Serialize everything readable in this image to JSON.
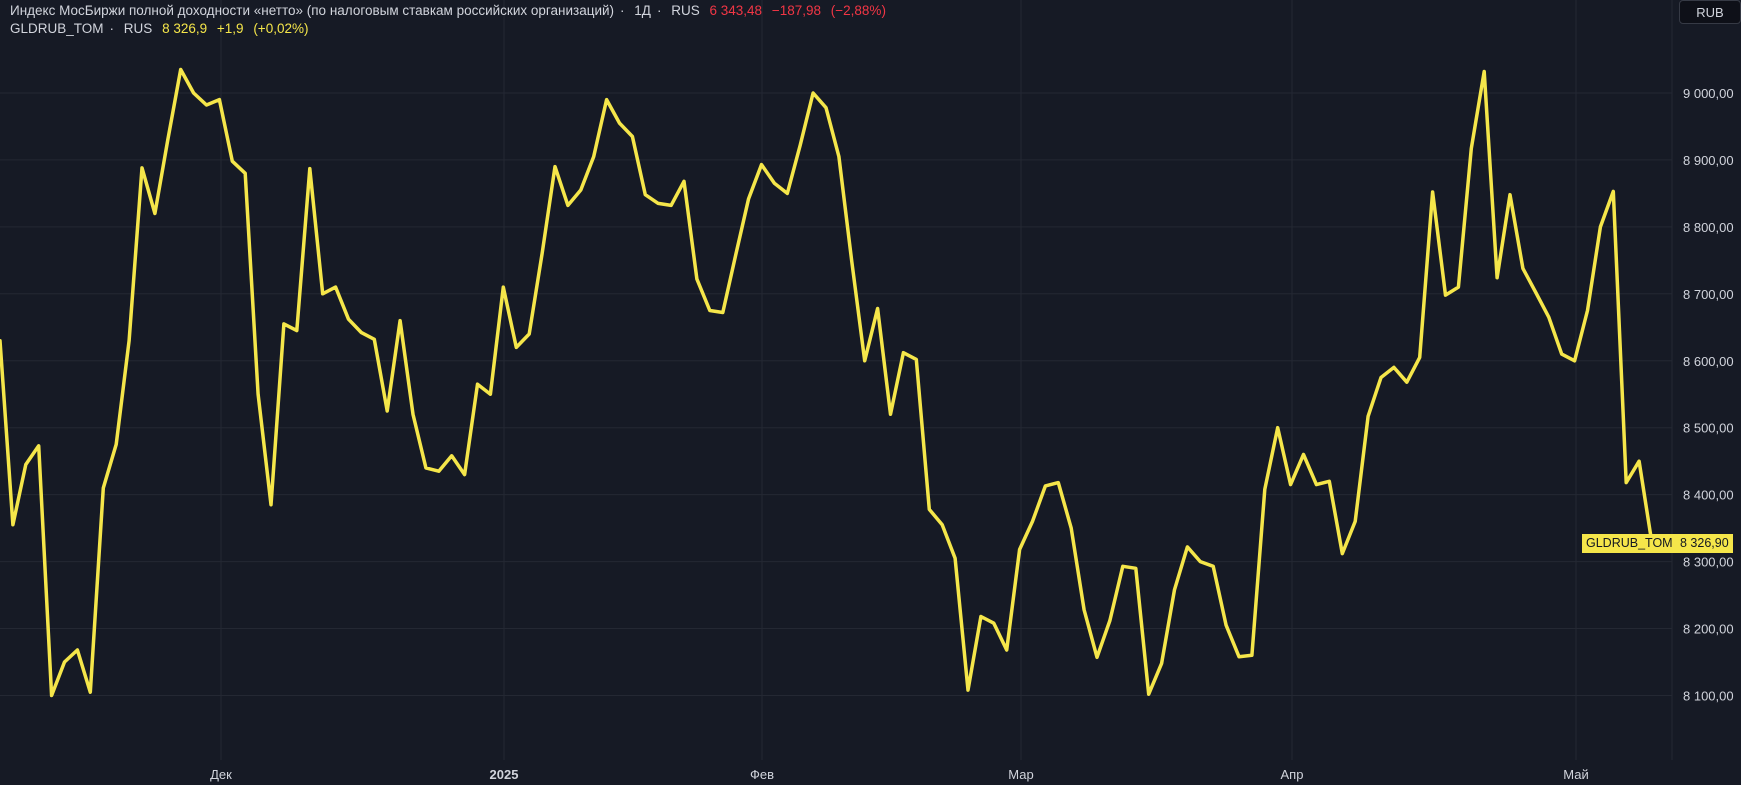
{
  "legend": {
    "row1": {
      "name": "Индекс МосБиржи полной доходности «нетто» (по налоговым ставкам российских организаций)",
      "interval": "1Д",
      "exchange": "RUS",
      "last": "6 343,48",
      "change": "−187,98",
      "change_pct": "(−2,88%)"
    },
    "row2": {
      "name": "GLDRUB_TOM",
      "exchange": "RUS",
      "last": "8 326,9",
      "change": "+1,9",
      "change_pct": "(+0,02%)"
    },
    "separator": "·"
  },
  "currency_button": "RUB",
  "price_label": {
    "name": "GLDRUB_TOM",
    "value": "8 326,90"
  },
  "colors": {
    "background": "#161a25",
    "grid": "#242833",
    "line": "#f5e64a",
    "axis_text": "#d1d4dc",
    "negative": "#f23645"
  },
  "chart_data": {
    "type": "line",
    "series": [
      {
        "name": "GLDRUB_TOM",
        "values": [
          8630,
          8355,
          8445,
          8473,
          8100,
          8150,
          8168,
          8105,
          8410,
          8475,
          8630,
          8888,
          8820,
          8930,
          9035,
          9000,
          8982,
          8990,
          8898,
          8880,
          8550,
          8385,
          8655,
          8645,
          8887,
          8700,
          8710,
          8662,
          8642,
          8632,
          8525,
          8660,
          8520,
          8440,
          8435,
          8458,
          8430,
          8565,
          8550,
          8710,
          8620,
          8640,
          8760,
          8890,
          8832,
          8855,
          8905,
          8990,
          8955,
          8935,
          8848,
          8835,
          8832,
          8868,
          8722,
          8675,
          8672,
          8758,
          8842,
          8893,
          8865,
          8850,
          8922,
          9000,
          8978,
          8905,
          8748,
          8600,
          8678,
          8520,
          8612,
          8602,
          8378,
          8355,
          8305,
          8108,
          8218,
          8208,
          8168,
          8318,
          8360,
          8413,
          8418,
          8350,
          8228,
          8157,
          8212,
          8293,
          8290,
          8102,
          8148,
          8258,
          8322,
          8300,
          8293,
          8205,
          8158,
          8160,
          8408,
          8500,
          8415,
          8460,
          8415,
          8420,
          8312,
          8360,
          8517,
          8575,
          8590,
          8568,
          8605,
          8852,
          8698,
          8710,
          8917,
          9032,
          8724,
          8848,
          8738,
          8702,
          8665,
          8610,
          8600,
          8675,
          8800,
          8853,
          8418,
          8450,
          8326.9
        ]
      }
    ],
    "x_ticks": [
      "Дек",
      "2025",
      "Фев",
      "Мар",
      "Апр",
      "Май"
    ],
    "y_ticks": [
      "8 100,00",
      "8 200,00",
      "8 300,00",
      "8 400,00",
      "8 500,00",
      "8 600,00",
      "8 700,00",
      "8 800,00",
      "8 900,00",
      "9 000,00"
    ],
    "y_tick_values": [
      8100,
      8200,
      8300,
      8400,
      8500,
      8600,
      8700,
      8800,
      8900,
      9000
    ],
    "grid": true,
    "last_value": 8326.9
  }
}
